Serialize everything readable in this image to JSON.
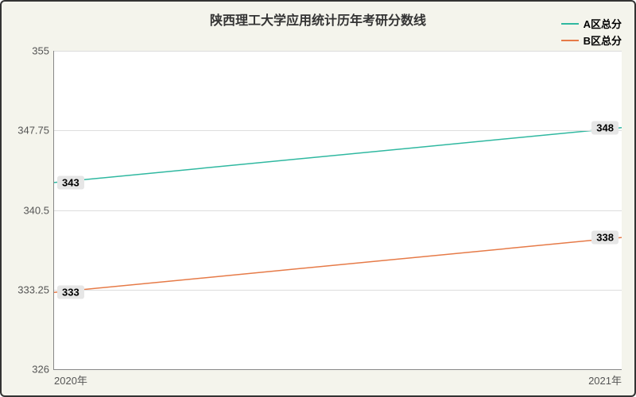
{
  "chart": {
    "type": "line",
    "title": "陕西理工大学应用统计历年考研分数线",
    "title_fontsize": 16,
    "title_color": "#333333",
    "background_color": "#f4f4ec",
    "plot_background": "#ffffff",
    "border_color": "#333333",
    "grid_color": "#dddddd",
    "axis_color": "#888888",
    "label_fontsize": 13,
    "tick_fontsize": 13,
    "ylim": [
      326,
      355
    ],
    "y_ticks": [
      326,
      333.25,
      340.5,
      347.75,
      355
    ],
    "x_categories": [
      "2020年",
      "2021年"
    ],
    "legend": {
      "position": "top-right",
      "fontsize": 13
    },
    "series": [
      {
        "name": "A区总分",
        "color": "#2fb8a0",
        "values": [
          343,
          348
        ],
        "line_width": 1.5
      },
      {
        "name": "B区总分",
        "color": "#e67a47",
        "values": [
          333,
          338
        ],
        "line_width": 1.5
      }
    ]
  }
}
